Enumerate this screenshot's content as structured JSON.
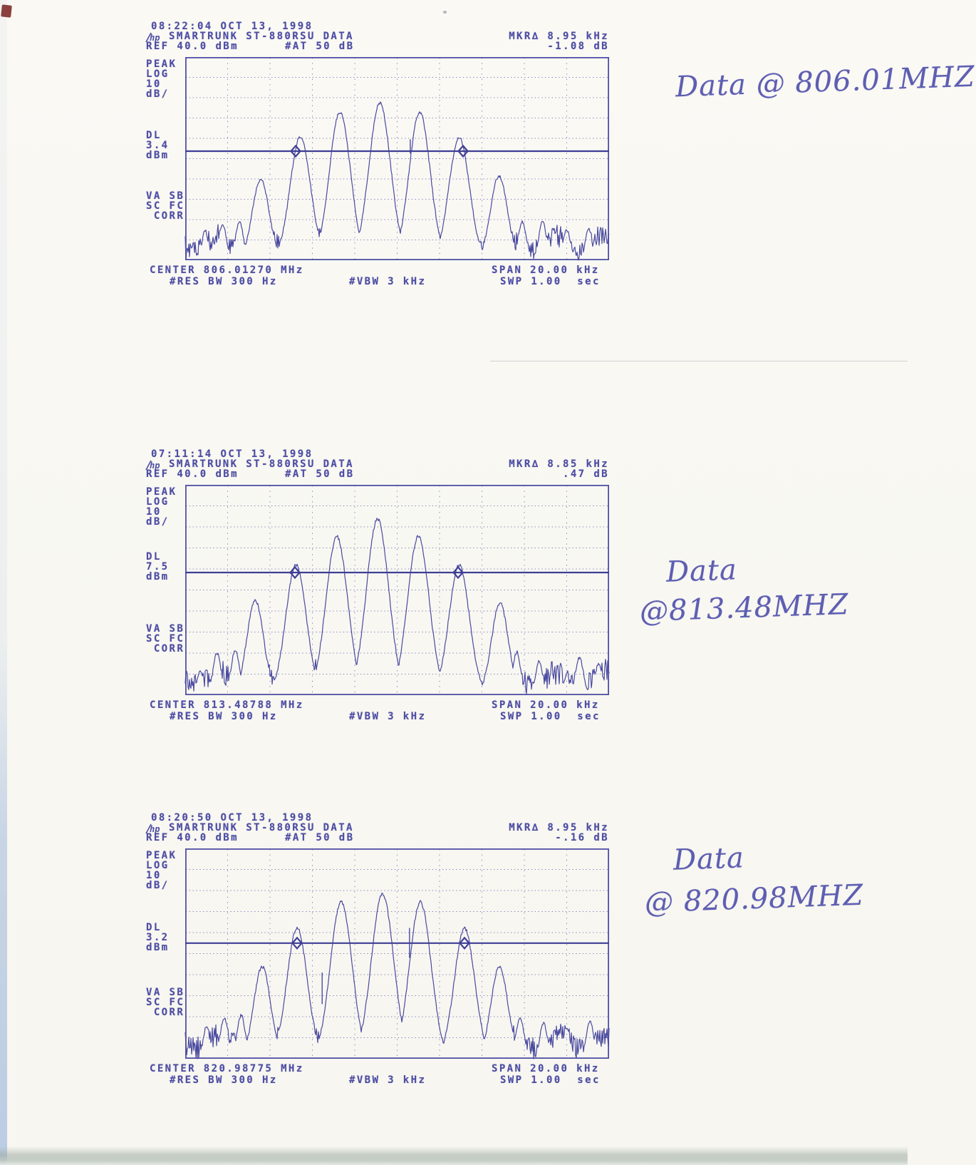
{
  "page": {
    "paper_color": "#faf9f4",
    "ink_color": "#4d4da4",
    "handwriting_color": "#5e5eb2"
  },
  "plots": [
    {
      "timestamp": "08:22:04 OCT 13, 1998",
      "brand": "hp",
      "title": "SMARTRUNK ST-880RSU DATA",
      "ref_level": "REF 40.0 dBm",
      "attenuation": "#AT 50 dB",
      "marker_freq": "MKR∆ 8.95 kHz",
      "marker_amp": "-1.08 dB",
      "scale": {
        "l1": "PEAK",
        "l2": "LOG",
        "l3": "10",
        "l4": "dB/"
      },
      "dl": {
        "l1": "DL",
        "l2": "3.4",
        "l3": "dBm"
      },
      "status": {
        "l1": "VA SB",
        "l2": "SC FC",
        "l3": " CORR"
      },
      "center": "CENTER 806.01270 MHz",
      "res_bw": "#RES BW 300 Hz",
      "vbw": "#VBW 3 kHz",
      "span": "SPAN 20.00 kHz",
      "sweep": "SWP 1.00  sec",
      "annotation": {
        "line1": "Data @ 806.01MHZ",
        "line2": ""
      }
    },
    {
      "timestamp": "07:11:14 OCT 13, 1998",
      "brand": "hp",
      "title": "SMARTRUNK ST-880RSU DATA",
      "ref_level": "REF 40.0 dBm",
      "attenuation": "#AT 50 dB",
      "marker_freq": "MKR∆ 8.85 kHz",
      "marker_amp": ".47 dB",
      "scale": {
        "l1": "PEAK",
        "l2": "LOG",
        "l3": "10",
        "l4": "dB/"
      },
      "dl": {
        "l1": "DL",
        "l2": "7.5",
        "l3": "dBm"
      },
      "status": {
        "l1": "VA SB",
        "l2": "SC FC",
        "l3": " CORR"
      },
      "center": "CENTER 813.48788 MHz",
      "res_bw": "#RES BW 300 Hz",
      "vbw": "#VBW 3 kHz",
      "span": "SPAN 20.00 kHz",
      "sweep": "SWP 1.00  sec",
      "annotation": {
        "line1": "Data",
        "line2": "@813.48MHZ"
      }
    },
    {
      "timestamp": "08:20:50 OCT 13, 1998",
      "brand": "hp",
      "title": "SMARTRUNK ST-880RSU DATA",
      "ref_level": "REF 40.0 dBm",
      "attenuation": "#AT 50 dB",
      "marker_freq": "MKR∆ 8.95 kHz",
      "marker_amp": "-.16 dB",
      "scale": {
        "l1": "PEAK",
        "l2": "LOG",
        "l3": "10",
        "l4": "dB/"
      },
      "dl": {
        "l1": "DL",
        "l2": "3.2",
        "l3": "dBm"
      },
      "status": {
        "l1": "VA SB",
        "l2": "SC FC",
        "l3": " CORR"
      },
      "center": "CENTER 820.98775 MHz",
      "res_bw": "#RES BW 300 Hz",
      "vbw": "#VBW 3 kHz",
      "span": "SPAN 20.00 kHz",
      "sweep": "SWP 1.00  sec",
      "annotation": {
        "line1": "Data",
        "line2": "@ 820.98MHZ"
      }
    }
  ],
  "chart_data": [
    {
      "type": "line",
      "title": "SMARTRUNK ST-880RSU DATA 08:22:04 OCT 13, 1998",
      "x_axis": {
        "center_MHz": 806.0127,
        "span_kHz": 20.0,
        "res_bw_Hz": 300,
        "vbw_kHz": 3,
        "sweep_s": 1.0
      },
      "y_axis": {
        "ref_dBm": 40.0,
        "dB_per_div": 10,
        "divisions": 10,
        "detector": "PEAK",
        "scale": "LOG"
      },
      "display_line": {
        "dBm": 3.4,
        "div_from_top": 4.63
      },
      "marker_delta": {
        "kHz": 8.95,
        "dB": -1.08
      },
      "markers_x": [
        0.2605,
        0.6555
      ],
      "noise_floor_div": 9.2,
      "grid": true,
      "seed": 7,
      "lobes": [
        {
          "x": 0.459,
          "d": 2.25,
          "w": 0.036
        },
        {
          "x": 0.365,
          "d": 2.7,
          "w": 0.035
        },
        {
          "x": 0.553,
          "d": 2.7,
          "w": 0.035
        },
        {
          "x": 0.2716,
          "d": 3.92,
          "w": 0.034
        },
        {
          "x": 0.6464,
          "d": 3.95,
          "w": 0.034
        },
        {
          "x": 0.178,
          "d": 6.0,
          "w": 0.028
        },
        {
          "x": 0.74,
          "d": 5.85,
          "w": 0.028
        },
        {
          "x": 0.128,
          "d": 8.1,
          "w": 0.013
        },
        {
          "x": 0.088,
          "d": 8.2,
          "w": 0.013
        },
        {
          "x": 0.047,
          "d": 8.55,
          "w": 0.011
        },
        {
          "x": 0.795,
          "d": 8.1,
          "w": 0.013
        },
        {
          "x": 0.843,
          "d": 8.05,
          "w": 0.012
        },
        {
          "x": 0.9,
          "d": 8.5,
          "w": 0.012
        },
        {
          "x": 0.952,
          "d": 8.45,
          "w": 0.011
        }
      ],
      "spikes": [
        {
          "x": 0.531,
          "d1": 4.05,
          "d2": 4.75
        }
      ]
    },
    {
      "type": "line",
      "title": "SMARTRUNK ST-880RSU DATA 07:11:14 OCT 13, 1998",
      "x_axis": {
        "center_MHz": 813.48788,
        "span_kHz": 20.0,
        "res_bw_Hz": 300,
        "vbw_kHz": 3,
        "sweep_s": 1.0
      },
      "y_axis": {
        "ref_dBm": 40.0,
        "dB_per_div": 10,
        "divisions": 10,
        "detector": "PEAK",
        "scale": "LOG"
      },
      "display_line": {
        "dBm": 7.5,
        "div_from_top": 4.17
      },
      "marker_delta": {
        "kHz": 8.85,
        "dB": 0.47
      },
      "markers_x": [
        0.2588,
        0.6437
      ],
      "noise_floor_div": 9.25,
      "grid": true,
      "seed": 13,
      "lobes": [
        {
          "x": 0.4538,
          "d": 1.62,
          "w": 0.037
        },
        {
          "x": 0.3576,
          "d": 2.45,
          "w": 0.036
        },
        {
          "x": 0.55,
          "d": 2.45,
          "w": 0.036
        },
        {
          "x": 0.2614,
          "d": 3.8,
          "w": 0.034
        },
        {
          "x": 0.6462,
          "d": 3.82,
          "w": 0.034
        },
        {
          "x": 0.1652,
          "d": 5.5,
          "w": 0.028
        },
        {
          "x": 0.7424,
          "d": 5.62,
          "w": 0.028
        },
        {
          "x": 0.118,
          "d": 7.85,
          "w": 0.014
        },
        {
          "x": 0.075,
          "d": 8.0,
          "w": 0.013
        },
        {
          "x": 0.035,
          "d": 8.9,
          "w": 0.011
        },
        {
          "x": 0.782,
          "d": 7.95,
          "w": 0.013
        },
        {
          "x": 0.835,
          "d": 8.4,
          "w": 0.012
        },
        {
          "x": 0.93,
          "d": 8.2,
          "w": 0.013
        },
        {
          "x": 0.975,
          "d": 8.5,
          "w": 0.011
        }
      ],
      "spikes": []
    },
    {
      "type": "line",
      "title": "SMARTRUNK ST-880RSU DATA 08:20:50 OCT 13, 1998",
      "x_axis": {
        "center_MHz": 820.98775,
        "span_kHz": 20.0,
        "res_bw_Hz": 300,
        "vbw_kHz": 3,
        "sweep_s": 1.0
      },
      "y_axis": {
        "ref_dBm": 40.0,
        "dB_per_div": 10,
        "divisions": 10,
        "detector": "PEAK",
        "scale": "LOG"
      },
      "display_line": {
        "dBm": 3.2,
        "div_from_top": 4.5
      },
      "marker_delta": {
        "kHz": 8.95,
        "dB": -0.16
      },
      "markers_x": [
        0.2639,
        0.6588
      ],
      "noise_floor_div": 9.2,
      "grid": true,
      "seed": 19,
      "lobes": [
        {
          "x": 0.4655,
          "d": 2.16,
          "w": 0.037
        },
        {
          "x": 0.368,
          "d": 2.52,
          "w": 0.036
        },
        {
          "x": 0.5546,
          "d": 2.55,
          "w": 0.036
        },
        {
          "x": 0.2639,
          "d": 3.76,
          "w": 0.034
        },
        {
          "x": 0.6588,
          "d": 3.8,
          "w": 0.034
        },
        {
          "x": 0.1815,
          "d": 5.62,
          "w": 0.028
        },
        {
          "x": 0.7412,
          "d": 5.6,
          "w": 0.028
        },
        {
          "x": 0.132,
          "d": 7.95,
          "w": 0.014
        },
        {
          "x": 0.092,
          "d": 8.05,
          "w": 0.013
        },
        {
          "x": 0.05,
          "d": 8.5,
          "w": 0.011
        },
        {
          "x": 0.79,
          "d": 8.0,
          "w": 0.013
        },
        {
          "x": 0.845,
          "d": 8.3,
          "w": 0.012
        },
        {
          "x": 0.9,
          "d": 8.6,
          "w": 0.012
        },
        {
          "x": 0.955,
          "d": 8.2,
          "w": 0.012
        }
      ],
      "spikes": [
        {
          "x": 0.323,
          "d1": 5.9,
          "d2": 7.4
        },
        {
          "x": 0.529,
          "d1": 3.78,
          "d2": 5.2
        }
      ]
    }
  ]
}
